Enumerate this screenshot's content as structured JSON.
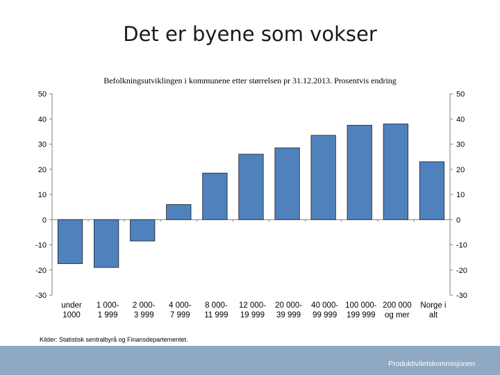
{
  "slide": {
    "title": "Det er byene som vokser",
    "source": "Kilder: Statistisk sentralbyrå og Finansdepartementet.",
    "footer": "Produktivitetskommisjonen"
  },
  "colors": {
    "bar": "#4f81bd",
    "bar_stroke": "#1f1f1f",
    "footer": "#8fa9c2"
  },
  "chart_data": {
    "type": "bar",
    "title": "Befolkningsutviklingen i kommunene etter størrelsen pr 31.12.2013. Prosentvis endring",
    "categories": [
      [
        "under",
        "1000"
      ],
      [
        "1 000-",
        "1 999"
      ],
      [
        "2 000-",
        "3 999"
      ],
      [
        "4 000-",
        "7 999"
      ],
      [
        "8 000-",
        "11 999"
      ],
      [
        "12 000-",
        "19 999"
      ],
      [
        "20 000-",
        "39 999"
      ],
      [
        "40 000-",
        "99 999"
      ],
      [
        "100 000-",
        "199 999"
      ],
      [
        "200 000",
        "og mer"
      ],
      [
        "Norge i",
        "alt"
      ]
    ],
    "values": [
      -17.5,
      -19,
      -8.5,
      6,
      18.5,
      26,
      28.5,
      33.5,
      37.5,
      38,
      23
    ],
    "yticks": [
      50,
      40,
      30,
      20,
      10,
      0,
      -10,
      -20,
      -30
    ],
    "ylim": [
      -30,
      50
    ],
    "xlabel": "",
    "ylabel": "",
    "grid": false,
    "legend": "none",
    "right_axis": true
  }
}
